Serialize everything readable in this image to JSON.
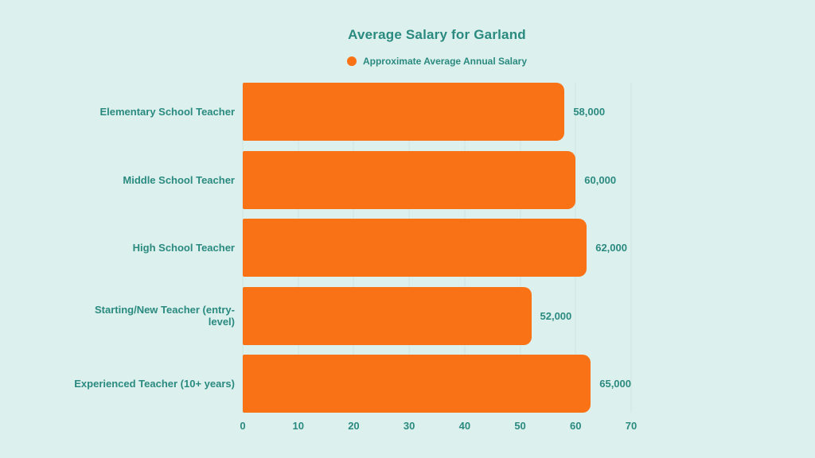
{
  "page": {
    "background_color": "#dcf0ed",
    "text_color": "#2a8a80"
  },
  "chart_data": {
    "type": "bar",
    "orientation": "horizontal",
    "title": "Average Salary for Garland",
    "legend": {
      "label": "Approximate Average Annual Salary",
      "marker_color": "#f97316",
      "position": "top-center"
    },
    "categories": [
      "Elementary School Teacher",
      "Middle School Teacher",
      "High School Teacher",
      "Starting/New Teacher (entry-level)",
      "Experienced Teacher (10+ years)"
    ],
    "values": [
      58000,
      60000,
      62000,
      52000,
      65000
    ],
    "value_labels": [
      "58,000",
      "60,000",
      "62,000",
      "52,000",
      "65,000"
    ],
    "axis_values_thousands": [
      58,
      60,
      62,
      52,
      65
    ],
    "xlabel": "",
    "ylabel": "",
    "xlim": [
      0,
      70
    ],
    "x_tick_labels": [
      "0",
      "10",
      "20",
      "30",
      "40",
      "50",
      "60",
      "70"
    ],
    "grid": true,
    "bar_color": "#f97316",
    "grid_color": "#cbe6e1"
  }
}
